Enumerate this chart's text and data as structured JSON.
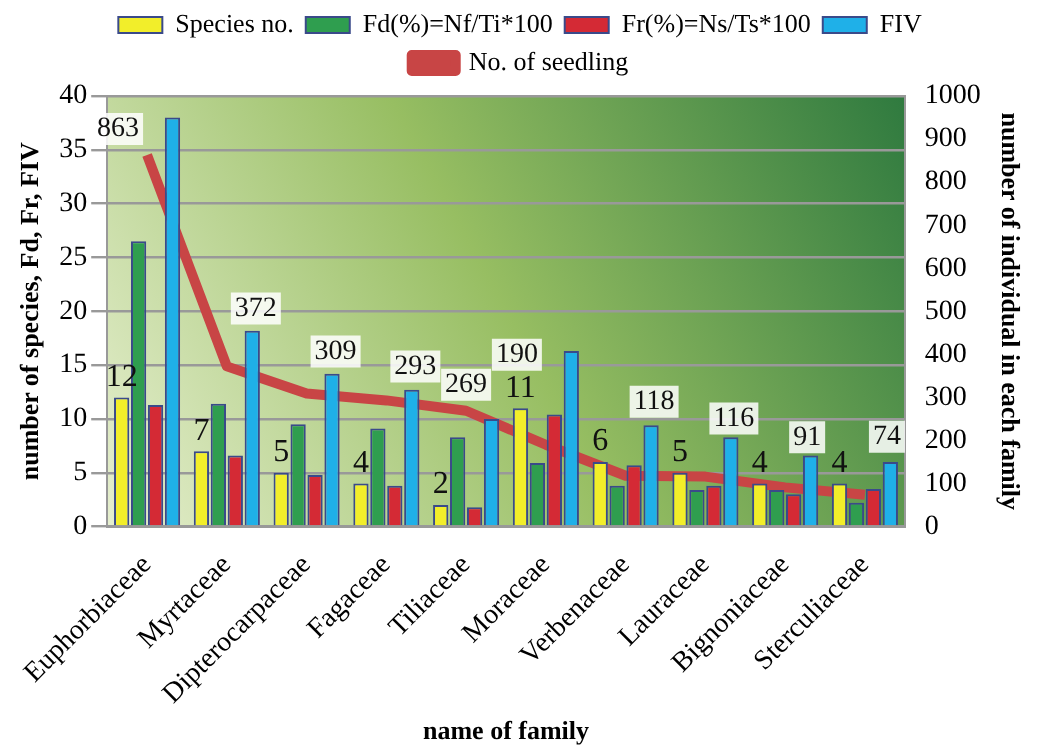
{
  "chart_data": {
    "type": "bar",
    "xlabel": "name of family",
    "ylabel": "number of species, Fd, Fr, FIV",
    "y2label": "number of individual in each family",
    "categories": [
      "Euphorbiaceae",
      "Myrtaceae",
      "Dipterocarpaceae",
      "Fagaceae",
      "Tiliaceae",
      "Moraceae",
      "Verbenaceae",
      "Lauraceae",
      "Bignoniaceae",
      "Sterculiaceae"
    ],
    "series": [
      {
        "name": "Species no.",
        "color": "#f2ee2a",
        "values": [
          12,
          7,
          5,
          4,
          2,
          11,
          6,
          5,
          4,
          4
        ],
        "value_labels": [
          "12",
          "7",
          "5",
          "4",
          "2",
          "11",
          "6",
          "5",
          "4",
          "4"
        ]
      },
      {
        "name": "Fd(%)=Nf/Ti*100",
        "color": "#2f9e4f",
        "values": [
          26.5,
          11.4,
          9.5,
          9.1,
          8.3,
          5.9,
          3.8,
          3.4,
          3.4,
          2.2
        ]
      },
      {
        "name": "Fr(%)=Ns/Ts*100",
        "color": "#d42a35",
        "values": [
          11.3,
          6.6,
          4.8,
          3.8,
          1.8,
          10.4,
          5.7,
          3.8,
          3,
          3.5
        ]
      },
      {
        "name": "FIV",
        "color": "#1fb0e8",
        "values": [
          38,
          18.2,
          14.2,
          12.7,
          10,
          16.3,
          9.4,
          8.3,
          6.6,
          6
        ]
      },
      {
        "name": "No. of seedling",
        "type": "line",
        "axis": "y2",
        "color": "#c84545",
        "values": [
          863,
          372,
          309,
          293,
          269,
          190,
          118,
          116,
          91,
          74
        ],
        "value_labels": [
          "863",
          "372",
          "309",
          "293",
          "269",
          "190",
          "118",
          "116",
          "91",
          "74"
        ]
      }
    ],
    "ylim": [
      0,
      40
    ],
    "yticks": [
      0,
      5,
      10,
      15,
      20,
      25,
      30,
      35,
      40
    ],
    "y2lim": [
      0,
      1000
    ],
    "y2ticks": [
      0,
      100,
      200,
      300,
      400,
      500,
      600,
      700,
      800,
      900,
      1000
    ],
    "grid": "y",
    "legend": "top",
    "marker": "none"
  }
}
